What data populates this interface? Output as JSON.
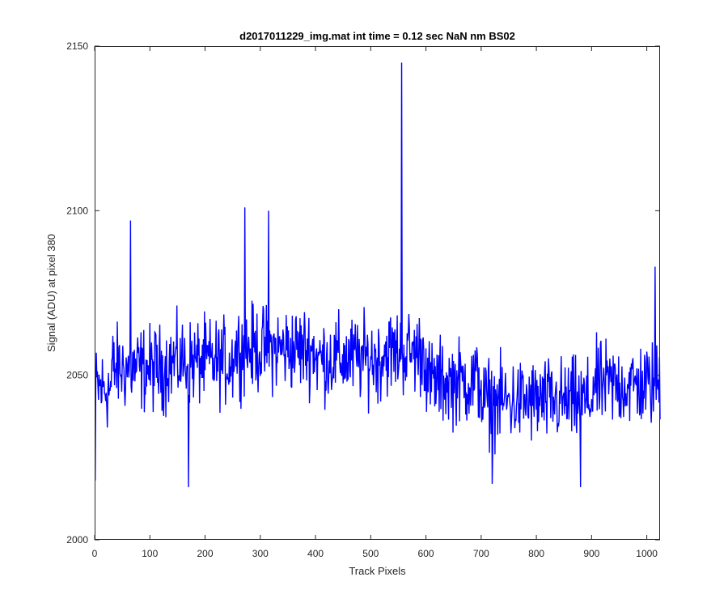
{
  "chart_data": {
    "type": "line",
    "title": "d2017011229_img.mat int time = 0.12 sec  NaN nm BS02",
    "xlabel": "Track Pixels",
    "ylabel": "Signal (ADU) at pixel 380",
    "xlim": [
      0,
      1024
    ],
    "ylim": [
      2000,
      2150
    ],
    "xticks": [
      0,
      100,
      200,
      300,
      400,
      500,
      600,
      700,
      800,
      900,
      1000
    ],
    "yticks": [
      2000,
      2050,
      2100,
      2150
    ],
    "grid": false,
    "series": [
      {
        "color": "#0000ff",
        "x_start": 1,
        "x_end": 1024,
        "notable_values": [
          {
            "x": 1,
            "y": 2018
          },
          {
            "x": 65,
            "y": 2097
          },
          {
            "x": 170,
            "y": 2016
          },
          {
            "x": 272,
            "y": 2101
          },
          {
            "x": 315,
            "y": 2100
          },
          {
            "x": 556,
            "y": 2145
          },
          {
            "x": 720,
            "y": 2017
          },
          {
            "x": 880,
            "y": 2016
          },
          {
            "x": 1015,
            "y": 2083
          }
        ],
        "segment_means": [
          {
            "x": [
              1,
              30
            ],
            "mean": 2046
          },
          {
            "x": [
              30,
              130
            ],
            "mean": 2052
          },
          {
            "x": [
              130,
              250
            ],
            "mean": 2054
          },
          {
            "x": [
              250,
              400
            ],
            "mean": 2058
          },
          {
            "x": [
              400,
              520
            ],
            "mean": 2055
          },
          {
            "x": [
              520,
              600
            ],
            "mean": 2057
          },
          {
            "x": [
              600,
              700
            ],
            "mean": 2048
          },
          {
            "x": [
              700,
              900
            ],
            "mean": 2042
          },
          {
            "x": [
              900,
              1024
            ],
            "mean": 2047
          }
        ],
        "noise_amplitude": 12
      }
    ]
  }
}
